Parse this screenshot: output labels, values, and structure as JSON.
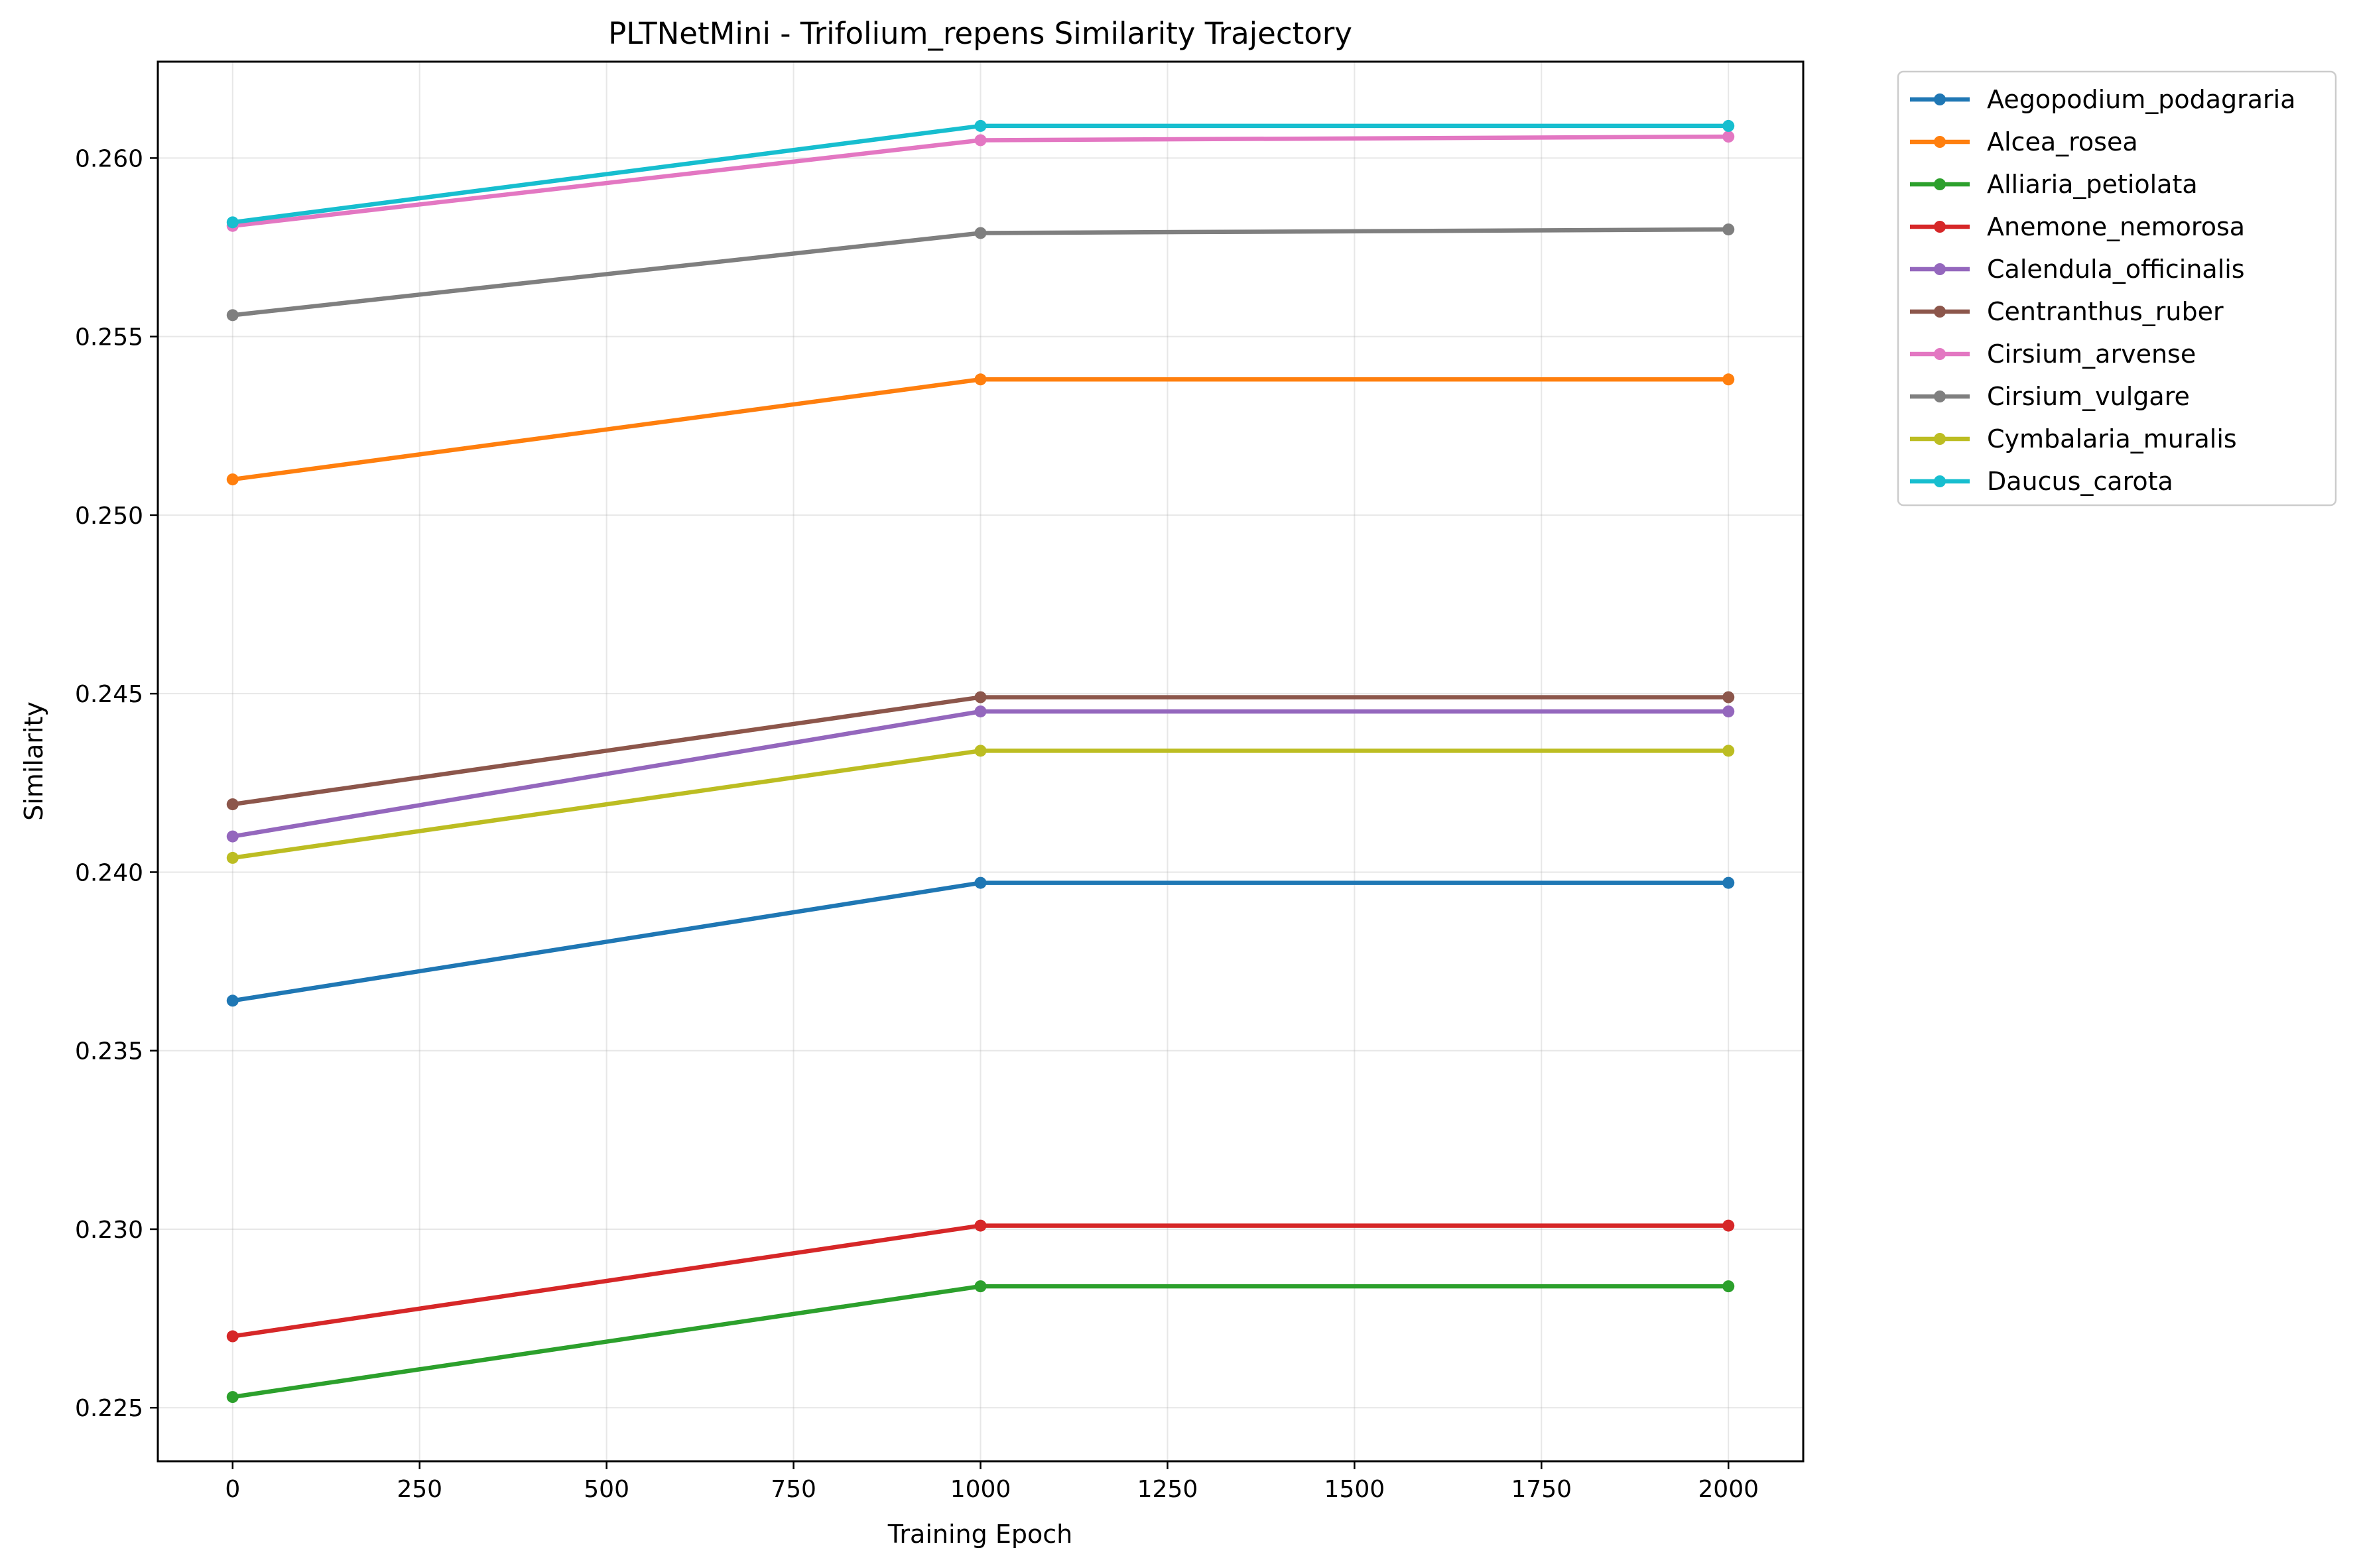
{
  "chart_data": {
    "type": "line",
    "title": "PLTNetMini - Trifolium_repens Similarity Trajectory",
    "xlabel": "Training Epoch",
    "ylabel": "Similarity",
    "x": [
      0,
      1000,
      2000
    ],
    "xlim": [
      -100,
      2100
    ],
    "ylim": [
      0.2235,
      0.2627
    ],
    "xticks": [
      0,
      250,
      500,
      750,
      1000,
      1250,
      1500,
      1750,
      2000
    ],
    "yticks": [
      0.225,
      0.23,
      0.235,
      0.24,
      0.245,
      0.25,
      0.255,
      0.26
    ],
    "ytick_labels": [
      "0.225",
      "0.230",
      "0.235",
      "0.240",
      "0.245",
      "0.250",
      "0.255",
      "0.260"
    ],
    "grid": true,
    "legend_position": "outside upper right",
    "series": [
      {
        "name": "Aegopodium_podagraria",
        "color": "#1f77b4",
        "values": [
          0.2364,
          0.2397,
          0.2397
        ]
      },
      {
        "name": "Alcea_rosea",
        "color": "#ff7f0e",
        "values": [
          0.251,
          0.2538,
          0.2538
        ]
      },
      {
        "name": "Alliaria_petiolata",
        "color": "#2ca02c",
        "values": [
          0.2253,
          0.2284,
          0.2284
        ]
      },
      {
        "name": "Anemone_nemorosa",
        "color": "#d62728",
        "values": [
          0.227,
          0.2301,
          0.2301
        ]
      },
      {
        "name": "Calendula_officinalis",
        "color": "#9467bd",
        "values": [
          0.241,
          0.2445,
          0.2445
        ]
      },
      {
        "name": "Centranthus_ruber",
        "color": "#8c564b",
        "values": [
          0.2419,
          0.2449,
          0.2449
        ]
      },
      {
        "name": "Cirsium_arvense",
        "color": "#e377c2",
        "values": [
          0.2581,
          0.2605,
          0.2606
        ]
      },
      {
        "name": "Cirsium_vulgare",
        "color": "#7f7f7f",
        "values": [
          0.2556,
          0.2579,
          0.258
        ]
      },
      {
        "name": "Cymbalaria_muralis",
        "color": "#bcbd22",
        "values": [
          0.2404,
          0.2434,
          0.2434
        ]
      },
      {
        "name": "Daucus_carota",
        "color": "#17becf",
        "values": [
          0.2582,
          0.2609,
          0.2609
        ]
      }
    ]
  }
}
